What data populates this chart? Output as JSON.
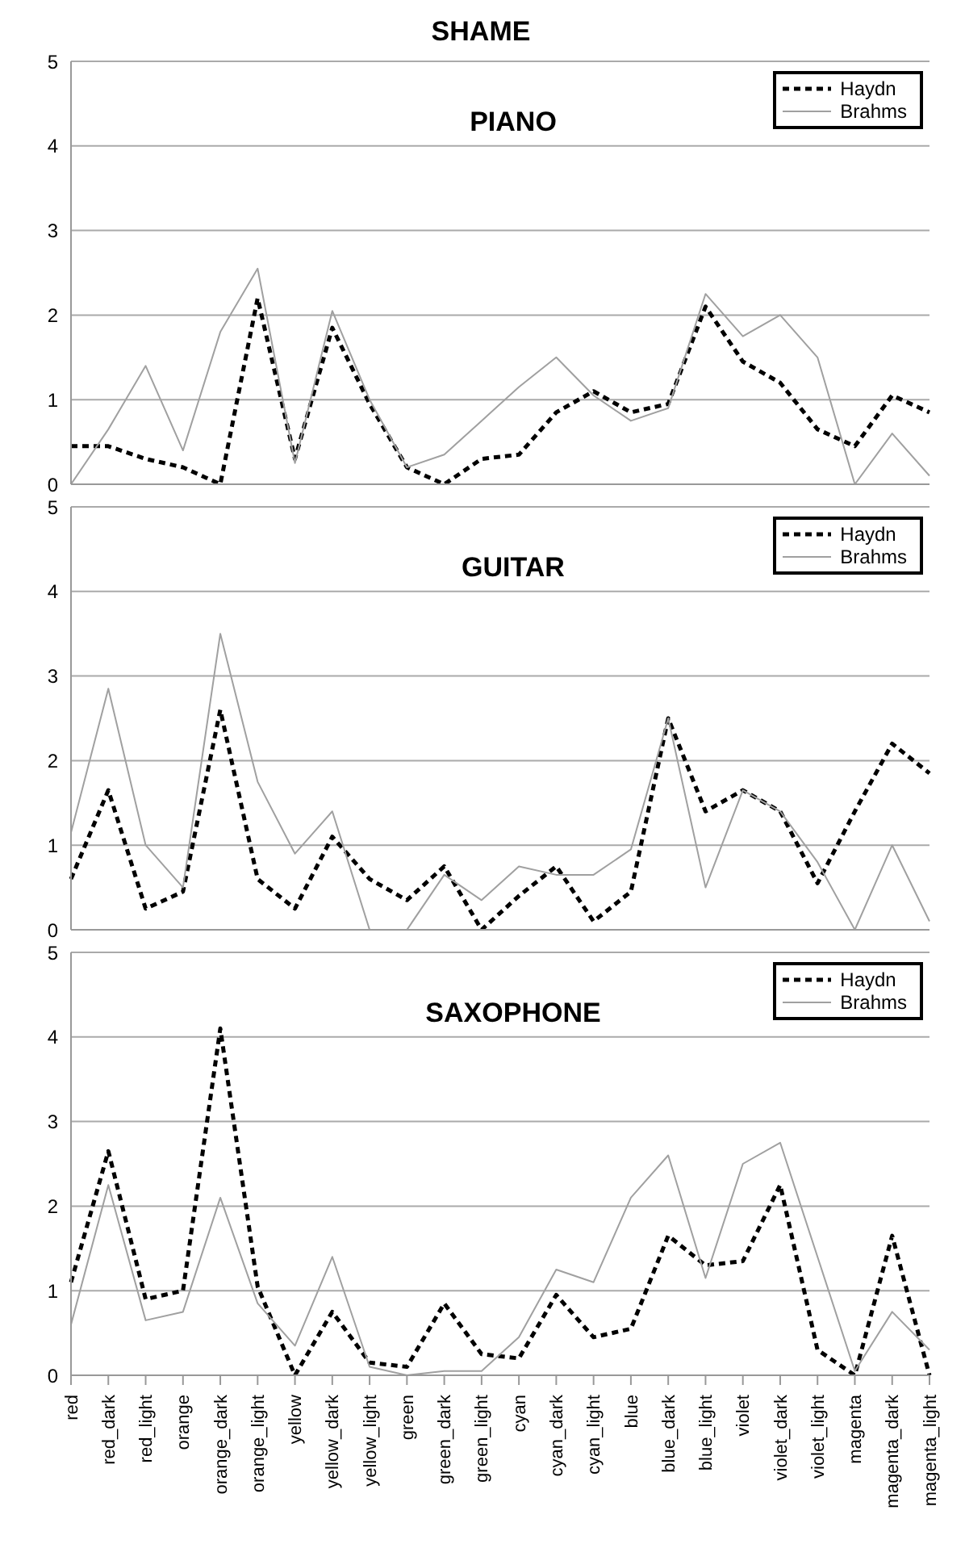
{
  "chart_data": [
    {
      "type": "line",
      "title": "SHAME",
      "subtitle": "PIANO",
      "categories": [
        null,
        null,
        null,
        null,
        null,
        null,
        null,
        null,
        null,
        null,
        null,
        null,
        null,
        null,
        null,
        null,
        null,
        null,
        null,
        null,
        null,
        null,
        null,
        null
      ],
      "series": [
        {
          "name": "Haydn",
          "color": "#000000",
          "line_style": "dashed",
          "values": [
            0.45,
            0.45,
            0.3,
            0.2,
            0,
            2.2,
            0.3,
            1.85,
            0.95,
            0.2,
            0,
            0.3,
            0.35,
            0.85,
            1.1,
            0.85,
            0.95,
            2.1,
            1.45,
            1.2,
            0.65,
            0.45,
            1.05,
            0.85
          ]
        },
        {
          "name": "Brahms",
          "color": "#a0a0a0",
          "line_style": "solid",
          "values": [
            0,
            0.65,
            1.4,
            0.4,
            1.8,
            2.55,
            0.25,
            2.05,
            1.0,
            0.2,
            0.35,
            0.75,
            1.15,
            1.5,
            1.05,
            0.75,
            0.9,
            2.25,
            1.75,
            2.0,
            1.5,
            0,
            0.6,
            0.1
          ]
        }
      ],
      "ylim": [
        0,
        5
      ],
      "yticks": [
        0,
        1,
        2,
        3,
        4,
        5
      ],
      "grid": "y",
      "legend": "top right",
      "tick_labels": "y",
      "marker": "none"
    },
    {
      "type": "line",
      "title": "GUITAR",
      "categories": [
        null,
        null,
        null,
        null,
        null,
        null,
        null,
        null,
        null,
        null,
        null,
        null,
        null,
        null,
        null,
        null,
        null,
        null,
        null,
        null,
        null,
        null,
        null,
        null
      ],
      "series": [
        {
          "name": "Haydn",
          "color": "#000000",
          "line_style": "dashed",
          "values": [
            0.6,
            1.65,
            0.25,
            0.45,
            2.6,
            0.6,
            0.25,
            1.1,
            0.6,
            0.35,
            0.75,
            0,
            0.4,
            0.75,
            0.1,
            0.45,
            2.5,
            1.4,
            1.65,
            1.4,
            0.55,
            1.4,
            2.2,
            1.85
          ]
        },
        {
          "name": "Brahms",
          "color": "#a0a0a0",
          "line_style": "solid",
          "values": [
            1.15,
            2.85,
            1.0,
            0.5,
            3.5,
            1.75,
            0.9,
            1.4,
            0,
            0,
            0.65,
            0.35,
            0.75,
            0.65,
            0.65,
            0.95,
            2.5,
            0.5,
            1.65,
            1.4,
            0.8,
            0,
            1.0,
            0.1
          ]
        }
      ],
      "ylim": [
        0,
        5
      ],
      "yticks": [
        0,
        1,
        2,
        3,
        4,
        5
      ],
      "grid": "y",
      "legend": "top right",
      "tick_labels": "y",
      "marker": "none"
    },
    {
      "type": "line",
      "title": "SAXOPHONE",
      "categories": [
        "red",
        "red_dark",
        "red_light",
        "orange",
        "orange_dark",
        "orange_light",
        "yellow",
        "yellow_dark",
        "yellow_light",
        "green",
        "green_dark",
        "green_light",
        "cyan",
        "cyan_dark",
        "cyan_light",
        "blue",
        "blue_dark",
        "blue_light",
        "violet",
        "violet_dark",
        "violet_light",
        "magenta",
        "magenta_dark",
        "magenta_light"
      ],
      "series": [
        {
          "name": "Haydn",
          "color": "#000000",
          "line_style": "dashed",
          "values": [
            1.1,
            2.65,
            0.9,
            1.0,
            4.1,
            1.05,
            0,
            0.75,
            0.15,
            0.1,
            0.85,
            0.25,
            0.2,
            0.95,
            0.45,
            0.55,
            1.65,
            1.3,
            1.35,
            2.25,
            0.3,
            0,
            1.65,
            0
          ]
        },
        {
          "name": "Brahms",
          "color": "#a0a0a0",
          "line_style": "solid",
          "values": [
            0.6,
            2.25,
            0.65,
            0.75,
            2.1,
            0.85,
            0.35,
            1.4,
            0.1,
            0,
            0.05,
            0.05,
            0.45,
            1.25,
            1.1,
            2.1,
            2.6,
            1.15,
            2.5,
            2.75,
            1.4,
            0.05,
            0.75,
            0.3
          ]
        }
      ],
      "ylim": [
        0,
        5
      ],
      "yticks": [
        0,
        1,
        2,
        3,
        4,
        5
      ],
      "grid": "y",
      "legend": "top right",
      "marker": "none"
    }
  ]
}
